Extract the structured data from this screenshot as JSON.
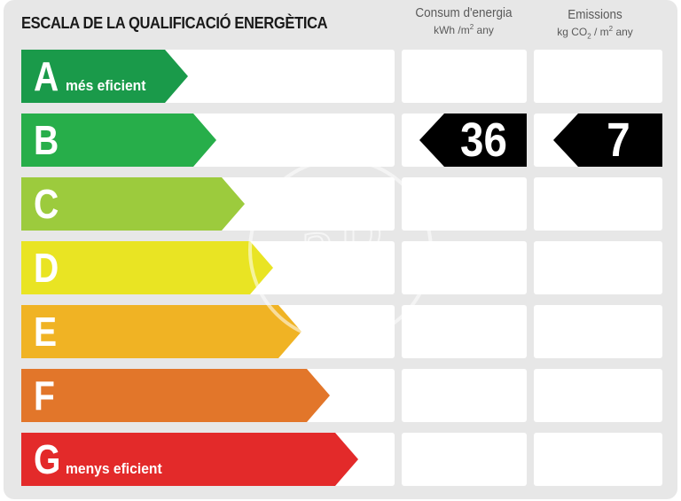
{
  "title": "ESCALA DE LA QUALIFICACIÓ ENERGÈTICA",
  "columns": {
    "consumption": {
      "label": "Consum d'energia",
      "unit_pre": "kWh /m",
      "unit_sup": "2",
      "unit_post": " any"
    },
    "emissions": {
      "label": "Emissions",
      "unit_pre": "kg CO",
      "unit_sub": "2",
      "unit_mid": " / m",
      "unit_sup": "2",
      "unit_post": " any"
    }
  },
  "ratings": [
    {
      "letter": "A",
      "sublabel": "més eficient",
      "color": "#1a9a4a"
    },
    {
      "letter": "B",
      "sublabel": "",
      "color": "#27ae4a"
    },
    {
      "letter": "C",
      "sublabel": "",
      "color": "#9ccb3d"
    },
    {
      "letter": "D",
      "sublabel": "",
      "color": "#e9e423"
    },
    {
      "letter": "E",
      "sublabel": "",
      "color": "#f0b324"
    },
    {
      "letter": "F",
      "sublabel": "",
      "color": "#e2762a"
    },
    {
      "letter": "G",
      "sublabel": "menys eficient",
      "color": "#e32a2a"
    }
  ],
  "result": {
    "rating": "B",
    "consumption_value": "36",
    "emissions_value": "7",
    "marker_color": "#000000"
  },
  "watermark_text": "aP"
}
